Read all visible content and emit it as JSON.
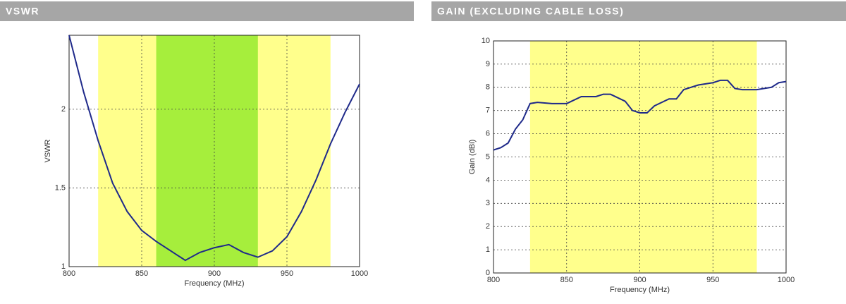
{
  "chart_data": [
    {
      "type": "line",
      "title": "VSWR",
      "xlabel": "Frequency (MHz)",
      "ylabel": "VSWR",
      "x": [
        800,
        810,
        820,
        830,
        840,
        850,
        860,
        870,
        880,
        890,
        900,
        910,
        920,
        930,
        940,
        950,
        960,
        970,
        980,
        990,
        1000
      ],
      "values": [
        2.47,
        2.11,
        1.8,
        1.53,
        1.35,
        1.23,
        1.16,
        1.1,
        1.04,
        1.09,
        1.12,
        1.14,
        1.09,
        1.06,
        1.1,
        1.19,
        1.35,
        1.55,
        1.78,
        1.98,
        2.16
      ],
      "color": "#1f2a8a",
      "xlim": [
        800,
        1000
      ],
      "ylim": [
        1,
        2.47
      ],
      "xticks": [
        800,
        850,
        900,
        950,
        1000
      ],
      "yticks": [
        1,
        1.5,
        2
      ],
      "grid": true,
      "bands": [
        {
          "from": 820,
          "to": 980,
          "color": "#ffff8c"
        },
        {
          "from": 860,
          "to": 930,
          "color": "#a6ee3c"
        }
      ]
    },
    {
      "type": "line",
      "title": "GAIN (EXCLUDING CABLE LOSS)",
      "xlabel": "Frequency (MHz)",
      "ylabel": "Gain (dBi)",
      "x": [
        800,
        805,
        810,
        815,
        820,
        825,
        830,
        840,
        850,
        860,
        870,
        875,
        880,
        890,
        895,
        900,
        905,
        910,
        920,
        925,
        930,
        940,
        950,
        955,
        960,
        965,
        970,
        980,
        990,
        995,
        1000
      ],
      "values": [
        5.3,
        5.4,
        5.6,
        6.2,
        6.6,
        7.3,
        7.35,
        7.3,
        7.3,
        7.6,
        7.6,
        7.7,
        7.7,
        7.4,
        7.0,
        6.9,
        6.9,
        7.2,
        7.5,
        7.5,
        7.9,
        8.1,
        8.2,
        8.3,
        8.3,
        7.95,
        7.9,
        7.9,
        8.0,
        8.2,
        8.25
      ],
      "color": "#1f2a8a",
      "xlim": [
        800,
        1000
      ],
      "ylim": [
        0,
        10
      ],
      "xticks": [
        800,
        850,
        900,
        950,
        1000
      ],
      "yticks": [
        0,
        1,
        2,
        3,
        4,
        5,
        6,
        7,
        8,
        9,
        10
      ],
      "grid": true,
      "bands": [
        {
          "from": 825,
          "to": 980,
          "color": "#ffff8c"
        }
      ]
    }
  ]
}
